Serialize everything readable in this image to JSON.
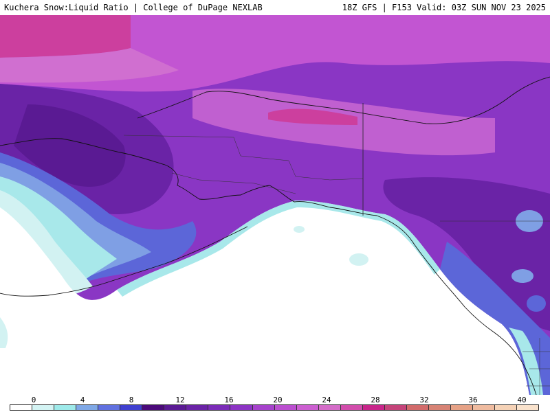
{
  "header": {
    "title_left": "Kuchera Snow:Liquid Ratio | College of DuPage NEXLAB",
    "title_right": "18Z GFS | F153 Valid: 03Z SUN NOV 23 2025"
  },
  "legend": {
    "ticks": [
      "0",
      "4",
      "8",
      "12",
      "16",
      "20",
      "24",
      "28",
      "32",
      "36",
      "40"
    ],
    "colors": [
      "#ffffff",
      "#d4f4f4",
      "#9eeaea",
      "#7fa8e6",
      "#6171e0",
      "#3f3fcf",
      "#4b0a7a",
      "#5a1a93",
      "#6a23a6",
      "#7b2cb8",
      "#8c34c4",
      "#a642cc",
      "#bb4fd0",
      "#cc5fd1",
      "#d46cc8",
      "#d24dac",
      "#c8258a",
      "#c5447a",
      "#d26b6b",
      "#d78375",
      "#e6a286",
      "#efbb9f",
      "#f5d2b6",
      "#f9e2cc"
    ]
  },
  "map": {
    "colors": {
      "ocean": "#ffffff",
      "light_cyan": "#d2f2f2",
      "cyan": "#a8e8ea",
      "blue_light": "#7f9fe4",
      "blue": "#5c66d8",
      "deep_violet": "#5a1a93",
      "violet": "#7a2db8",
      "purple": "#9a3cc8",
      "magenta": "#c255d2",
      "pink": "#d06fd0",
      "hot_pink": "#cc3f9e",
      "coast_line": "#111111"
    }
  }
}
